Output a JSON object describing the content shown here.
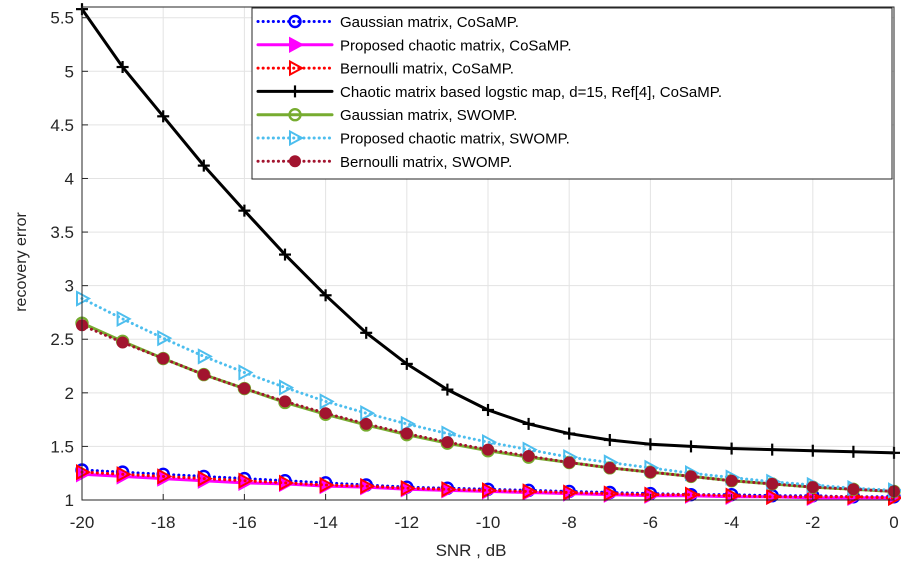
{
  "chart_data": {
    "type": "line",
    "title": "",
    "xlabel": "SNR , dB",
    "ylabel": "recovery error",
    "xlim": [
      -20,
      0
    ],
    "ylim": [
      1,
      5.6
    ],
    "grid": true,
    "legend_position": "top-right",
    "x_ticks": [
      -20,
      -18,
      -16,
      -14,
      -12,
      -10,
      -8,
      -6,
      -4,
      -2,
      0
    ],
    "x_tick_labels": [
      "-20",
      "-18",
      "-16",
      "-14",
      "-12",
      "-10",
      "-8",
      "-6",
      "-4",
      "-2",
      "0"
    ],
    "y_ticks": [
      1,
      1.5,
      2,
      2.5,
      3,
      3.5,
      4,
      4.5,
      5,
      5.5
    ],
    "y_tick_labels": [
      "1",
      "1.5",
      "2",
      "2.5",
      "3",
      "3.5",
      "4",
      "4.5",
      "5",
      "5.5"
    ],
    "x": [
      -20,
      -19,
      -18,
      -17,
      -16,
      -15,
      -14,
      -13,
      -12,
      -11,
      -10,
      -9,
      -8,
      -7,
      -6,
      -5,
      -4,
      -3,
      -2,
      -1,
      0
    ],
    "series": [
      {
        "name": "Gaussian matrix, CoSaMP.",
        "color": "#0000ff",
        "line_style": "dotted",
        "marker": "circle-open",
        "values": [
          1.28,
          1.26,
          1.24,
          1.22,
          1.2,
          1.18,
          1.16,
          1.14,
          1.12,
          1.11,
          1.1,
          1.09,
          1.08,
          1.07,
          1.06,
          1.05,
          1.05,
          1.04,
          1.04,
          1.03,
          1.03
        ]
      },
      {
        "name": "Proposed chaotic matrix, CoSaMP.",
        "color": "#ff00ff",
        "line_style": "solid",
        "marker": "triangle-right",
        "values": [
          1.24,
          1.22,
          1.2,
          1.18,
          1.16,
          1.15,
          1.13,
          1.12,
          1.1,
          1.09,
          1.08,
          1.07,
          1.06,
          1.05,
          1.04,
          1.04,
          1.03,
          1.03,
          1.02,
          1.02,
          1.02
        ]
      },
      {
        "name": "Bernoulli matrix, CoSaMP.",
        "color": "#ff0000",
        "line_style": "dotted",
        "marker": "triangle-right-open",
        "values": [
          1.26,
          1.24,
          1.22,
          1.2,
          1.18,
          1.16,
          1.14,
          1.13,
          1.11,
          1.1,
          1.09,
          1.08,
          1.07,
          1.06,
          1.05,
          1.05,
          1.04,
          1.03,
          1.03,
          1.03,
          1.02
        ]
      },
      {
        "name": "Chaotic matrix based logstic map, d=15, Ref[4], CoSaMP.",
        "color": "#000000",
        "line_style": "solid",
        "marker": "plus",
        "values": [
          5.58,
          5.04,
          4.58,
          4.12,
          3.7,
          3.29,
          2.91,
          2.56,
          2.27,
          2.03,
          1.84,
          1.71,
          1.62,
          1.56,
          1.52,
          1.5,
          1.48,
          1.47,
          1.46,
          1.45,
          1.44
        ]
      },
      {
        "name": "Gaussian matrix, SWOMP.",
        "color": "#77ac30",
        "line_style": "solid",
        "marker": "circle-open",
        "values": [
          2.65,
          2.48,
          2.32,
          2.17,
          2.04,
          1.91,
          1.8,
          1.7,
          1.61,
          1.53,
          1.46,
          1.4,
          1.35,
          1.3,
          1.26,
          1.22,
          1.18,
          1.15,
          1.12,
          1.1,
          1.08
        ]
      },
      {
        "name": "Proposed chaotic matrix, SWOMP.",
        "color": "#4dbeee",
        "line_style": "dotted",
        "marker": "triangle-right-open",
        "values": [
          2.88,
          2.69,
          2.51,
          2.34,
          2.19,
          2.05,
          1.92,
          1.81,
          1.71,
          1.62,
          1.54,
          1.47,
          1.4,
          1.35,
          1.3,
          1.25,
          1.21,
          1.17,
          1.14,
          1.11,
          1.09
        ]
      },
      {
        "name": "Bernoulli matrix, SWOMP.",
        "color": "#a2142f",
        "line_style": "dotted",
        "marker": "circle-filled",
        "values": [
          2.63,
          2.47,
          2.32,
          2.17,
          2.04,
          1.92,
          1.81,
          1.71,
          1.62,
          1.54,
          1.47,
          1.41,
          1.35,
          1.3,
          1.26,
          1.22,
          1.18,
          1.15,
          1.12,
          1.1,
          1.08
        ]
      }
    ]
  }
}
